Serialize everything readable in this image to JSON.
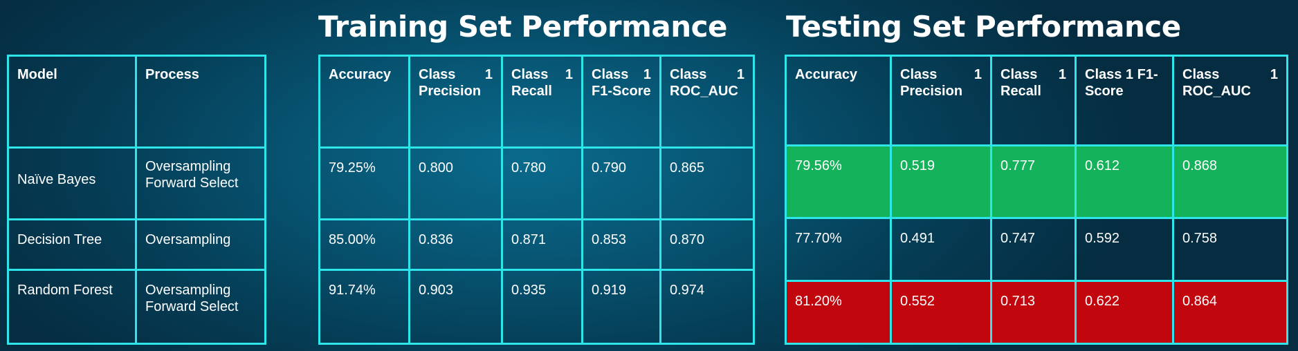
{
  "titles": {
    "training": "Training Set Performance",
    "testing": "Testing Set Performance"
  },
  "models_table": {
    "headers": [
      "Model",
      "Process"
    ],
    "rows": [
      {
        "model": "Naïve  Bayes",
        "process": "Oversampling Forward Select"
      },
      {
        "model": "Decision Tree",
        "process": "Oversampling"
      },
      {
        "model": "Random Forest",
        "process": "Oversampling Forward Select"
      }
    ]
  },
  "training_table": {
    "headers": [
      "Accuracy",
      "Class 1 Precision",
      "Class 1 Recall",
      "Class 1 F1-Score",
      "Class 1 ROC_AUC"
    ],
    "rows": [
      [
        "79.25%",
        "0.800",
        "0.780",
        "0.790",
        "0.865"
      ],
      [
        "85.00%",
        "0.836",
        "0.871",
        "0.853",
        "0.870"
      ],
      [
        "91.74%",
        "0.903",
        "0.935",
        "0.919",
        "0.974"
      ]
    ]
  },
  "testing_table": {
    "headers": [
      "Accuracy",
      "Class 1 Precision",
      "Class 1 Recall",
      "Class 1 F1-Score",
      "Class 1 ROC_AUC"
    ],
    "rows": [
      [
        "79.56%",
        "0.519",
        "0.777",
        "0.612",
        "0.868"
      ],
      [
        "77.70%",
        "0.491",
        "0.747",
        "0.592",
        "0.758"
      ],
      [
        "81.20%",
        "0.552",
        "0.713",
        "0.622",
        "0.864"
      ]
    ]
  },
  "colors": {
    "border": "#2ee6ea",
    "highlight_best": "#14b25a",
    "highlight_worst": "#c1060e",
    "background": "#075573"
  }
}
